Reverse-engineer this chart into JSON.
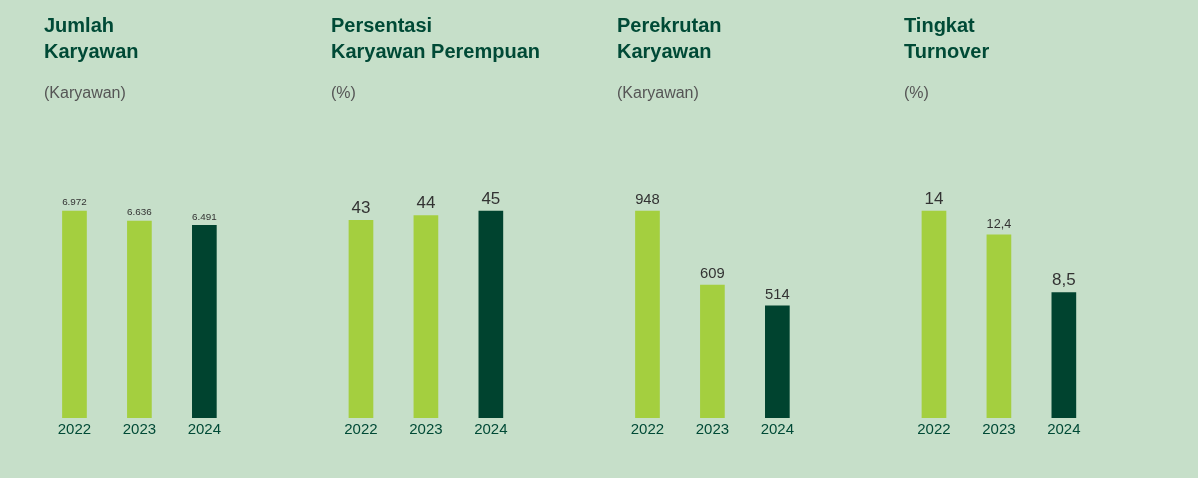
{
  "chart_data": [
    {
      "type": "bar",
      "title": "Jumlah Karyawan",
      "subtitle": "(Karyawan)",
      "categories": [
        "2022",
        "2023",
        "2024"
      ],
      "values": [
        6972,
        6636,
        6491
      ],
      "value_labels": [
        "6.972",
        "6.636",
        "6.491"
      ],
      "colors": [
        "#a4cf3f",
        "#a4cf3f",
        "#00432f"
      ]
    },
    {
      "type": "bar",
      "title": "Persentasi Karyawan Perempuan",
      "subtitle": "(%)",
      "categories": [
        "2022",
        "2023",
        "2024"
      ],
      "values": [
        43,
        44,
        45
      ],
      "value_labels": [
        "43",
        "44",
        "45"
      ],
      "colors": [
        "#a4cf3f",
        "#a4cf3f",
        "#00432f"
      ]
    },
    {
      "type": "bar",
      "title": "Perekrutan Karyawan",
      "subtitle": "(Karyawan)",
      "categories": [
        "2022",
        "2023",
        "2024"
      ],
      "values": [
        948,
        609,
        514
      ],
      "value_labels": [
        "948",
        "609",
        "514"
      ],
      "colors": [
        "#a4cf3f",
        "#a4cf3f",
        "#00432f"
      ]
    },
    {
      "type": "bar",
      "title": "Tingkat Turnover",
      "subtitle": "(%)",
      "categories": [
        "2022",
        "2023",
        "2024"
      ],
      "values": [
        14,
        12.4,
        8.5
      ],
      "value_labels": [
        "14",
        "12,4",
        "8,5"
      ],
      "colors": [
        "#a4cf3f",
        "#a4cf3f",
        "#00432f"
      ]
    }
  ]
}
